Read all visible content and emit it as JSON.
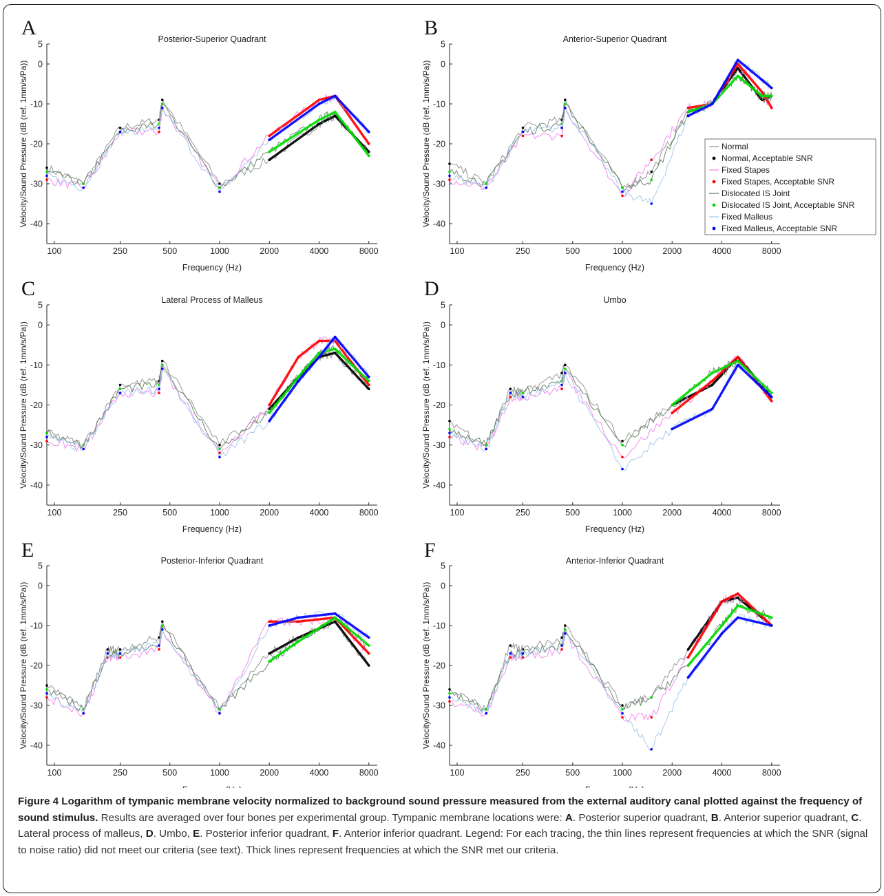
{
  "figure": {
    "caption_title": "Figure 4 Logarithm of tympanic membrane velocity normalized to background sound pressure measured from the external auditory canal plotted against the frequency of sound stimulus.",
    "caption_body_1": " Results are averaged over four bones per experimental group. Tympanic membrane locations were: ",
    "loc_A": "A",
    "loc_A_text": ". Posterior superior quadrant, ",
    "loc_B": "B",
    "loc_B_text": ". Anterior superior quadrant, ",
    "loc_C": "C",
    "loc_C_text": ". Lateral process of malleus, ",
    "loc_D": "D",
    "loc_D_text": ". Umbo, ",
    "loc_E": "E",
    "loc_E_text": ". Posterior inferior quadrant, ",
    "loc_F": "F",
    "loc_F_text": ". Anterior inferior quadrant. Legend: For each tracing, the thin lines represent frequencies at which the SNR (signal to noise ratio) did not meet our criteria (see text). Thick lines represent frequencies at which the SNR met our criteria."
  },
  "colors": {
    "normal_thin": "#8c8c8c",
    "normal_thick": "#000000",
    "fixed_stapes_thin": "#ee82ee",
    "fixed_stapes_thick": "#ff0000",
    "dislocated_is_thin": "#5a7a5a",
    "dislocated_is_thick": "#00dd00",
    "fixed_malleus_thin": "#9ec4e8",
    "fixed_malleus_thick": "#0000ff"
  },
  "legend_items": [
    {
      "label": "Normal",
      "kind": "line",
      "color_key": "normal_thin"
    },
    {
      "label": "Normal, Acceptable SNR",
      "kind": "dot",
      "color_key": "normal_thick"
    },
    {
      "label": "Fixed Stapes",
      "kind": "line",
      "color_key": "fixed_stapes_thin"
    },
    {
      "label": "Fixed Stapes, Acceptable SNR",
      "kind": "dot",
      "color_key": "fixed_stapes_thick"
    },
    {
      "label": "Dislocated IS Joint",
      "kind": "line",
      "color_key": "dislocated_is_thin"
    },
    {
      "label": "Dislocated IS Joint, Acceptable SNR",
      "kind": "dot",
      "color_key": "dislocated_is_thick"
    },
    {
      "label": "Fixed Malleus",
      "kind": "line",
      "color_key": "fixed_malleus_thin"
    },
    {
      "label": "Fixed Malleus, Acceptable SNR",
      "kind": "dot",
      "color_key": "fixed_malleus_thick"
    }
  ],
  "chart_data": [
    {
      "panel_letter": "A",
      "type": "line",
      "title": "Posterior-Superior Quadrant",
      "xlabel": "Frequency (Hz)",
      "ylabel": "Velocity/Sound Pressure (dB (ref. 1mm/s/Pa))",
      "x_scale": "log",
      "xlim": [
        90,
        9000
      ],
      "ylim": [
        -45,
        5
      ],
      "x_ticks": [
        100,
        250,
        500,
        1000,
        2000,
        4000,
        8000
      ],
      "y_ticks": [
        5,
        0,
        -10,
        -20,
        -30,
        -40
      ],
      "legend": false,
      "series": [
        {
          "name": "Normal",
          "x": [
            90,
            150,
            250,
            430,
            450,
            1000,
            2000,
            4000,
            5000,
            8000
          ],
          "y": [
            -26,
            -30,
            -16,
            -14,
            -9,
            -30,
            -24,
            -15,
            -13,
            -22
          ]
        },
        {
          "name": "Fixed Stapes",
          "x": [
            90,
            150,
            250,
            430,
            450,
            1000,
            2000,
            4000,
            5000,
            8000
          ],
          "y": [
            -29,
            -31,
            -17,
            -17,
            -11,
            -31,
            -18,
            -9,
            -8,
            -20
          ]
        },
        {
          "name": "Dislocated IS Joint",
          "x": [
            90,
            150,
            250,
            430,
            450,
            1000,
            2000,
            4000,
            5000,
            8000
          ],
          "y": [
            -27,
            -30,
            -17,
            -15,
            -10,
            -31,
            -22,
            -14,
            -12,
            -23
          ]
        },
        {
          "name": "Fixed Malleus",
          "x": [
            90,
            150,
            250,
            430,
            450,
            1000,
            2000,
            4000,
            5000,
            8000
          ],
          "y": [
            -28,
            -31,
            -17,
            -16,
            -11,
            -32,
            -19,
            -10,
            -8,
            -17
          ]
        }
      ]
    },
    {
      "panel_letter": "B",
      "type": "line",
      "title": "Anterior-Superior Quadrant",
      "xlabel": "Frequency (Hz)",
      "ylabel": "Velocity/Sound Pressure (dB (ref. 1mm/s/Pa))",
      "x_scale": "log",
      "xlim": [
        90,
        9000
      ],
      "ylim": [
        -45,
        5
      ],
      "x_ticks": [
        100,
        250,
        500,
        1000,
        2000,
        4000,
        8000
      ],
      "y_ticks": [
        5,
        0,
        -10,
        -20,
        -30,
        -40
      ],
      "legend": true,
      "legend_position": "right",
      "series": [
        {
          "name": "Normal",
          "x": [
            90,
            150,
            250,
            430,
            450,
            1000,
            1500,
            2500,
            3500,
            5000,
            7000,
            8000
          ],
          "y": [
            -25,
            -30,
            -16,
            -14,
            -9,
            -31,
            -27,
            -12,
            -10,
            -1,
            -9,
            -8
          ]
        },
        {
          "name": "Fixed Stapes",
          "x": [
            90,
            150,
            250,
            430,
            450,
            1000,
            1500,
            2500,
            3500,
            5000,
            7000,
            8000
          ],
          "y": [
            -29,
            -31,
            -18,
            -18,
            -11,
            -33,
            -24,
            -11,
            -10,
            0,
            -7,
            -11
          ]
        },
        {
          "name": "Dislocated IS Joint",
          "x": [
            90,
            150,
            250,
            430,
            450,
            1000,
            1500,
            2500,
            3500,
            5000,
            7000,
            8000
          ],
          "y": [
            -27,
            -30,
            -17,
            -15,
            -10,
            -31,
            -29,
            -12,
            -10,
            -3,
            -8,
            -8
          ]
        },
        {
          "name": "Fixed Malleus",
          "x": [
            90,
            150,
            250,
            430,
            450,
            1000,
            1500,
            2500,
            3500,
            5000,
            7000,
            8000
          ],
          "y": [
            -28,
            -31,
            -17,
            -16,
            -11,
            -32,
            -35,
            -13,
            -10,
            1,
            -4,
            -6
          ]
        }
      ]
    },
    {
      "panel_letter": "C",
      "type": "line",
      "title": "Lateral Process of Malleus",
      "xlabel": "Frequency (Hz)",
      "ylabel": "Velocity/Sound Pressure (dB (ref. 1mm/s/Pa))",
      "x_scale": "log",
      "xlim": [
        90,
        9000
      ],
      "ylim": [
        -45,
        5
      ],
      "x_ticks": [
        100,
        250,
        500,
        1000,
        2000,
        4000,
        8000
      ],
      "y_ticks": [
        5,
        0,
        -10,
        -20,
        -30,
        -40
      ],
      "legend": false,
      "series": [
        {
          "name": "Normal",
          "x": [
            90,
            150,
            250,
            430,
            450,
            1000,
            2000,
            3000,
            4000,
            5000,
            8000
          ],
          "y": [
            -27,
            -30,
            -15,
            -14,
            -9,
            -30,
            -21,
            -13,
            -8,
            -7,
            -16
          ]
        },
        {
          "name": "Fixed Stapes",
          "x": [
            90,
            150,
            250,
            430,
            450,
            1000,
            2000,
            3000,
            4000,
            5000,
            8000
          ],
          "y": [
            -29,
            -31,
            -17,
            -17,
            -11,
            -32,
            -20,
            -8,
            -4,
            -4,
            -15
          ]
        },
        {
          "name": "Dislocated IS Joint",
          "x": [
            90,
            150,
            250,
            430,
            450,
            1000,
            2000,
            3000,
            4000,
            5000,
            8000
          ],
          "y": [
            -27,
            -30,
            -16,
            -15,
            -10,
            -31,
            -22,
            -13,
            -7,
            -6,
            -14
          ]
        },
        {
          "name": "Fixed Malleus",
          "x": [
            90,
            150,
            250,
            430,
            450,
            1000,
            2000,
            3000,
            4000,
            5000,
            8000
          ],
          "y": [
            -28,
            -31,
            -17,
            -16,
            -11,
            -33,
            -24,
            -14,
            -8,
            -3,
            -13
          ]
        }
      ]
    },
    {
      "panel_letter": "D",
      "type": "line",
      "title": "Umbo",
      "xlabel": "Frequency (Hz)",
      "ylabel": "Velocity/Sound Pressure (dB (ref. 1mm/s/Pa))",
      "x_scale": "log",
      "xlim": [
        90,
        9000
      ],
      "ylim": [
        -45,
        5
      ],
      "x_ticks": [
        100,
        250,
        500,
        1000,
        2000,
        4000,
        8000
      ],
      "y_ticks": [
        5,
        0,
        -10,
        -20,
        -30,
        -40
      ],
      "legend": false,
      "series": [
        {
          "name": "Normal",
          "x": [
            90,
            150,
            210,
            250,
            430,
            450,
            1000,
            2000,
            3500,
            5000,
            8000
          ],
          "y": [
            -24,
            -30,
            -16,
            -17,
            -12,
            -10,
            -29,
            -20,
            -15,
            -8,
            -18
          ]
        },
        {
          "name": "Fixed Stapes",
          "x": [
            90,
            150,
            210,
            250,
            430,
            450,
            1000,
            2000,
            3500,
            5000,
            8000
          ],
          "y": [
            -28,
            -31,
            -18,
            -18,
            -16,
            -12,
            -33,
            -22,
            -14,
            -8,
            -19
          ]
        },
        {
          "name": "Dislocated IS Joint",
          "x": [
            90,
            150,
            210,
            250,
            430,
            450,
            1000,
            2000,
            3500,
            5000,
            8000
          ],
          "y": [
            -26,
            -30,
            -17,
            -17,
            -14,
            -11,
            -30,
            -20,
            -12,
            -9,
            -17
          ]
        },
        {
          "name": "Fixed Malleus",
          "x": [
            90,
            150,
            210,
            250,
            430,
            450,
            1000,
            2000,
            3500,
            5000,
            8000
          ],
          "y": [
            -27,
            -31,
            -17,
            -18,
            -15,
            -12,
            -36,
            -26,
            -21,
            -10,
            -18
          ]
        }
      ]
    },
    {
      "panel_letter": "E",
      "type": "line",
      "title": "Posterior-Inferior Quadrant",
      "xlabel": "Frequency (Hz)",
      "ylabel": "Velocity/Sound Pressure (dB (ref. 1mm/s/Pa))",
      "x_scale": "log",
      "xlim": [
        90,
        9000
      ],
      "ylim": [
        -45,
        5
      ],
      "x_ticks": [
        100,
        250,
        500,
        1000,
        2000,
        4000,
        8000
      ],
      "y_ticks": [
        5,
        0,
        -10,
        -20,
        -30,
        -40
      ],
      "legend": false,
      "series": [
        {
          "name": "Normal",
          "x": [
            90,
            150,
            210,
            250,
            430,
            450,
            1000,
            2000,
            3000,
            5000,
            8000
          ],
          "y": [
            -25,
            -31,
            -16,
            -16,
            -13,
            -9,
            -31,
            -17,
            -13,
            -9,
            -20
          ]
        },
        {
          "name": "Fixed Stapes",
          "x": [
            90,
            150,
            210,
            250,
            430,
            450,
            1000,
            2000,
            3000,
            5000,
            8000
          ],
          "y": [
            -28,
            -32,
            -18,
            -18,
            -16,
            -11,
            -32,
            -9,
            -9,
            -8,
            -17
          ]
        },
        {
          "name": "Dislocated IS Joint",
          "x": [
            90,
            150,
            210,
            250,
            430,
            450,
            1000,
            2000,
            3000,
            5000,
            8000
          ],
          "y": [
            -26,
            -31,
            -17,
            -17,
            -15,
            -10,
            -31,
            -19,
            -14,
            -8,
            -15
          ]
        },
        {
          "name": "Fixed Malleus",
          "x": [
            90,
            150,
            210,
            250,
            430,
            450,
            1000,
            2000,
            3000,
            5000,
            8000
          ],
          "y": [
            -27,
            -32,
            -17,
            -17,
            -15,
            -11,
            -32,
            -10,
            -8,
            -7,
            -13
          ]
        }
      ]
    },
    {
      "panel_letter": "F",
      "type": "line",
      "title": "Anterior-Inferior Quadrant",
      "xlabel": "Frequency (Hz)",
      "ylabel": "Velocity/Sound Pressure (dB (ref. 1mm/s/Pa))",
      "x_scale": "log",
      "xlim": [
        90,
        9000
      ],
      "ylim": [
        -45,
        5
      ],
      "x_ticks": [
        100,
        250,
        500,
        1000,
        2000,
        4000,
        8000
      ],
      "y_ticks": [
        5,
        0,
        -10,
        -20,
        -30,
        -40
      ],
      "legend": false,
      "series": [
        {
          "name": "Normal",
          "x": [
            90,
            150,
            210,
            250,
            430,
            450,
            1000,
            1500,
            2500,
            4000,
            5000,
            8000
          ],
          "y": [
            -26,
            -31,
            -15,
            -16,
            -13,
            -10,
            -30,
            -28,
            -16,
            -4,
            -3,
            -10
          ]
        },
        {
          "name": "Fixed Stapes",
          "x": [
            90,
            150,
            210,
            250,
            430,
            450,
            1000,
            1500,
            2500,
            4000,
            5000,
            8000
          ],
          "y": [
            -29,
            -32,
            -18,
            -18,
            -16,
            -12,
            -33,
            -33,
            -18,
            -4,
            -2,
            -10
          ]
        },
        {
          "name": "Dislocated IS Joint",
          "x": [
            90,
            150,
            210,
            250,
            430,
            450,
            1000,
            1500,
            2500,
            4000,
            5000,
            8000
          ],
          "y": [
            -27,
            -31,
            -17,
            -17,
            -15,
            -11,
            -31,
            -28,
            -20,
            -10,
            -5,
            -8
          ]
        },
        {
          "name": "Fixed Malleus",
          "x": [
            90,
            150,
            210,
            250,
            430,
            450,
            1000,
            1500,
            2500,
            4000,
            5000,
            8000
          ],
          "y": [
            -28,
            -32,
            -17,
            -17,
            -15,
            -12,
            -32,
            -41,
            -23,
            -12,
            -8,
            -10
          ]
        }
      ]
    }
  ]
}
